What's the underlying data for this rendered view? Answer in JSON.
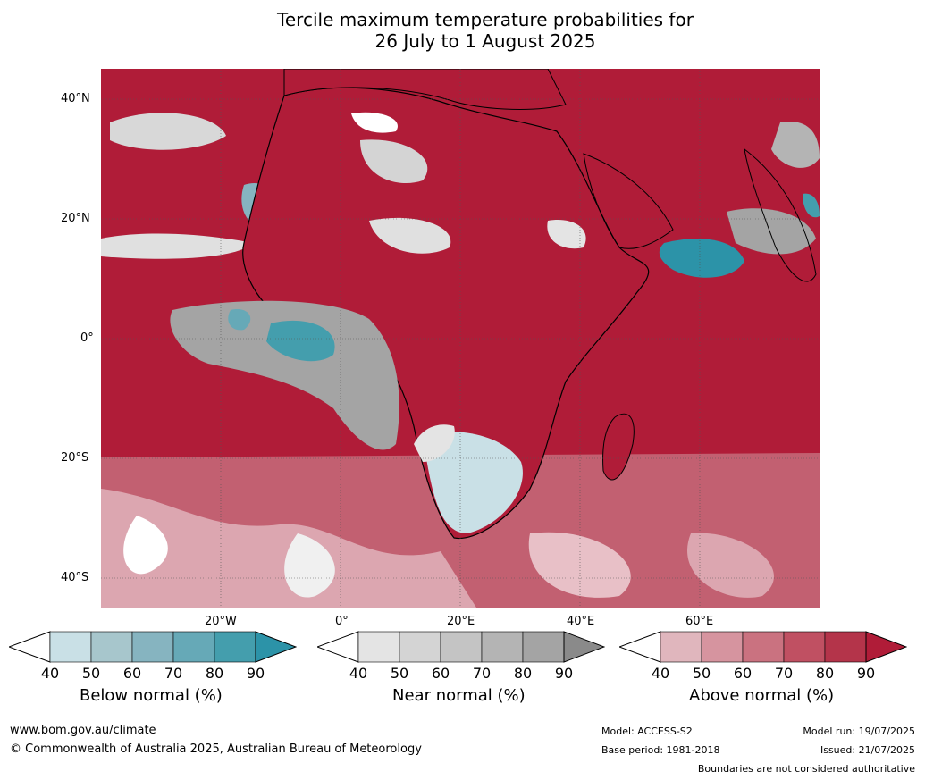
{
  "title_line1": "Tercile maximum temperature probabilities for",
  "title_line2": "26 July to 1 August 2025",
  "lat_labels": [
    "40°N",
    "20°N",
    "0°",
    "20°S",
    "40°S"
  ],
  "lon_labels": [
    "20°W",
    "0°",
    "20°E",
    "40°E",
    "60°E"
  ],
  "colorbars": [
    {
      "label": "Below normal (%)",
      "ticks": [
        "40",
        "50",
        "60",
        "70",
        "80",
        "90"
      ],
      "colors": [
        "#c9e0e6",
        "#a7c6cc",
        "#86b4c0",
        "#66a9b7",
        "#449ead"
      ],
      "arrow_color": "#2c93a8"
    },
    {
      "label": "Near normal (%)",
      "ticks": [
        "40",
        "50",
        "60",
        "70",
        "80",
        "90"
      ],
      "colors": [
        "#e4e4e4",
        "#d4d4d4",
        "#c4c4c4",
        "#b4b4b4",
        "#a4a4a4"
      ],
      "arrow_color": "#8a8a8a"
    },
    {
      "label": "Above normal (%)",
      "ticks": [
        "40",
        "50",
        "60",
        "70",
        "80",
        "90"
      ],
      "colors": [
        "#e0b6bd",
        "#d6949f",
        "#ca7280",
        "#c05062",
        "#b4344a"
      ],
      "arrow_color": "#b01c38"
    }
  ],
  "footer": {
    "website": "www.bom.gov.au/climate",
    "copyright": "© Commonwealth of Australia 2025, Australian Bureau of Meteorology",
    "model": "Model: ACCESS-S2",
    "base_period": "Base period: 1981-2018",
    "model_run": "Model run: 19/07/2025",
    "issued": "Issued: 21/07/2025",
    "disclaimer": "Boundaries are not considered authoritative"
  }
}
